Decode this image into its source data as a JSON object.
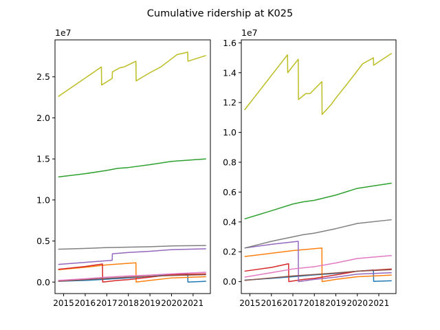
{
  "figure": {
    "title": "Cumulative ridership at K025"
  },
  "chart_data": [
    {
      "type": "line",
      "title": "",
      "xlabel": "",
      "ylabel": "",
      "offset_text": "1e7",
      "xlim": [
        2014.6,
        2021.8
      ],
      "ylim": [
        -1400000,
        29500000
      ],
      "xticks": [
        2015,
        2016,
        2017,
        2018,
        2019,
        2020,
        2021
      ],
      "xtick_labels": [
        "2015",
        "2016",
        "2017",
        "2018",
        "2019",
        "2020",
        "2021"
      ],
      "yticks": [
        0,
        5000000,
        10000000,
        15000000,
        20000000,
        25000000
      ],
      "ytick_labels": [
        "0.0",
        "0.5",
        "1.0",
        "1.5",
        "2.0",
        "2.5"
      ],
      "grid": false,
      "series": [
        {
          "color": "#1f77b4",
          "points": [
            [
              2014.75,
              100000
            ],
            [
              2016,
              200000
            ],
            [
              2017,
              350000
            ],
            [
              2018,
              500000
            ],
            [
              2019,
              700000
            ],
            [
              2020,
              900000
            ],
            [
              2020.75,
              1000000
            ],
            [
              2020.76,
              0
            ],
            [
              2021.6,
              100000
            ]
          ]
        },
        {
          "color": "#ff7f0e",
          "points": [
            [
              2014.75,
              1500000
            ],
            [
              2016,
              1800000
            ],
            [
              2017,
              2100000
            ],
            [
              2018.35,
              2350000
            ],
            [
              2018.36,
              0
            ],
            [
              2019,
              200000
            ],
            [
              2020,
              500000
            ],
            [
              2021.6,
              650000
            ]
          ]
        },
        {
          "color": "#2ca02c",
          "points": [
            [
              2014.75,
              12800000
            ],
            [
              2016,
              13200000
            ],
            [
              2017,
              13600000
            ],
            [
              2017.5,
              13850000
            ],
            [
              2018,
              13950000
            ],
            [
              2019,
              14300000
            ],
            [
              2020,
              14700000
            ],
            [
              2021.6,
              15000000
            ]
          ]
        },
        {
          "color": "#d62728",
          "points": [
            [
              2014.75,
              1550000
            ],
            [
              2016,
              1900000
            ],
            [
              2016.8,
              2200000
            ],
            [
              2016.81,
              0
            ],
            [
              2017.5,
              200000
            ],
            [
              2018,
              300000
            ],
            [
              2019,
              600000
            ],
            [
              2020,
              900000
            ],
            [
              2021.6,
              1000000
            ]
          ]
        },
        {
          "color": "#9467bd",
          "points": [
            [
              2014.75,
              2150000
            ],
            [
              2016,
              2400000
            ],
            [
              2017.25,
              2650000
            ],
            [
              2017.26,
              3450000
            ],
            [
              2018,
              3600000
            ],
            [
              2019,
              3750000
            ],
            [
              2020,
              3950000
            ],
            [
              2021.6,
              4050000
            ]
          ]
        },
        {
          "color": "#8c564b",
          "points": [
            [
              2014.75,
              100000
            ],
            [
              2016,
              300000
            ],
            [
              2017,
              450000
            ],
            [
              2018,
              600000
            ],
            [
              2019,
              700000
            ],
            [
              2020,
              800000
            ],
            [
              2021.6,
              900000
            ]
          ]
        },
        {
          "color": "#e377c2",
          "points": [
            [
              2014.75,
              200000
            ],
            [
              2016,
              400000
            ],
            [
              2017,
              600000
            ],
            [
              2018,
              750000
            ],
            [
              2019,
              850000
            ],
            [
              2020,
              1000000
            ],
            [
              2021.6,
              1200000
            ]
          ]
        },
        {
          "color": "#7f7f7f",
          "points": [
            [
              2014.75,
              4000000
            ],
            [
              2016,
              4100000
            ],
            [
              2017,
              4200000
            ],
            [
              2018,
              4250000
            ],
            [
              2019,
              4300000
            ],
            [
              2020,
              4400000
            ],
            [
              2021.6,
              4450000
            ]
          ]
        },
        {
          "color": "#bcbd22",
          "points": [
            [
              2014.75,
              22600000
            ],
            [
              2016.75,
              26200000
            ],
            [
              2016.76,
              24000000
            ],
            [
              2017.25,
              24800000
            ],
            [
              2017.26,
              25600000
            ],
            [
              2017.6,
              26100000
            ],
            [
              2017.8,
              26200000
            ],
            [
              2018.35,
              26900000
            ],
            [
              2018.36,
              24500000
            ],
            [
              2018.8,
              25200000
            ],
            [
              2019,
              25500000
            ],
            [
              2019.5,
              26200000
            ],
            [
              2020.25,
              27700000
            ],
            [
              2020.75,
              28000000
            ],
            [
              2020.76,
              26900000
            ],
            [
              2021.6,
              27600000
            ]
          ]
        }
      ]
    },
    {
      "type": "line",
      "title": "",
      "xlabel": "",
      "ylabel": "",
      "offset_text": "1e7",
      "xlim": [
        2014.6,
        2021.8
      ],
      "ylim": [
        -800000,
        16200000
      ],
      "xticks": [
        2015,
        2016,
        2017,
        2018,
        2019,
        2020,
        2021
      ],
      "xtick_labels": [
        "2015",
        "2016",
        "2017",
        "2018",
        "2019",
        "2020",
        "2021"
      ],
      "yticks": [
        0,
        2000000,
        4000000,
        6000000,
        8000000,
        10000000,
        12000000,
        14000000,
        16000000
      ],
      "ytick_labels": [
        "0.0",
        "0.2",
        "0.4",
        "0.6",
        "0.8",
        "1.0",
        "1.2",
        "1.4",
        "1.6"
      ],
      "grid": false,
      "series": [
        {
          "color": "#1f77b4",
          "points": [
            [
              2014.75,
              100000
            ],
            [
              2016,
              220000
            ],
            [
              2017,
              330000
            ],
            [
              2018,
              450000
            ],
            [
              2019,
              550000
            ],
            [
              2020,
              700000
            ],
            [
              2020.75,
              780000
            ],
            [
              2020.76,
              20000
            ],
            [
              2021.6,
              60000
            ]
          ]
        },
        {
          "color": "#ff7f0e",
          "points": [
            [
              2014.75,
              1680000
            ],
            [
              2016,
              1900000
            ],
            [
              2017,
              2080000
            ],
            [
              2018.35,
              2250000
            ],
            [
              2018.36,
              0
            ],
            [
              2019,
              150000
            ],
            [
              2020,
              330000
            ],
            [
              2021.6,
              440000
            ]
          ]
        },
        {
          "color": "#2ca02c",
          "points": [
            [
              2014.75,
              4200000
            ],
            [
              2016,
              4750000
            ],
            [
              2017,
              5200000
            ],
            [
              2017.5,
              5350000
            ],
            [
              2018,
              5450000
            ],
            [
              2019,
              5800000
            ],
            [
              2020,
              6250000
            ],
            [
              2021.6,
              6600000
            ]
          ]
        },
        {
          "color": "#d62728",
          "points": [
            [
              2014.75,
              700000
            ],
            [
              2016,
              950000
            ],
            [
              2016.8,
              1200000
            ],
            [
              2016.81,
              0
            ],
            [
              2017.5,
              150000
            ],
            [
              2018,
              220000
            ],
            [
              2019,
              450000
            ],
            [
              2020,
              700000
            ],
            [
              2021.6,
              850000
            ]
          ]
        },
        {
          "color": "#9467bd",
          "points": [
            [
              2014.75,
              2250000
            ],
            [
              2016,
              2500000
            ],
            [
              2017.25,
              2700000
            ],
            [
              2017.26,
              0
            ],
            [
              2018,
              150000
            ],
            [
              2019,
              300000
            ],
            [
              2020,
              500000
            ],
            [
              2021.6,
              600000
            ]
          ]
        },
        {
          "color": "#8c564b",
          "points": [
            [
              2014.75,
              80000
            ],
            [
              2016,
              250000
            ],
            [
              2017,
              380000
            ],
            [
              2018,
              480000
            ],
            [
              2019,
              580000
            ],
            [
              2020,
              700000
            ],
            [
              2021.6,
              800000
            ]
          ]
        },
        {
          "color": "#e377c2",
          "points": [
            [
              2014.75,
              300000
            ],
            [
              2016,
              600000
            ],
            [
              2017,
              850000
            ],
            [
              2018,
              1000000
            ],
            [
              2019,
              1250000
            ],
            [
              2020,
              1550000
            ],
            [
              2021.6,
              1750000
            ]
          ]
        },
        {
          "color": "#7f7f7f",
          "points": [
            [
              2014.75,
              2250000
            ],
            [
              2016,
              2700000
            ],
            [
              2017,
              3000000
            ],
            [
              2017.5,
              3150000
            ],
            [
              2018,
              3250000
            ],
            [
              2019,
              3550000
            ],
            [
              2020,
              3900000
            ],
            [
              2021.6,
              4150000
            ]
          ]
        },
        {
          "color": "#bcbd22",
          "points": [
            [
              2014.75,
              11500000
            ],
            [
              2016.75,
              15200000
            ],
            [
              2016.76,
              14000000
            ],
            [
              2017.25,
              14900000
            ],
            [
              2017.26,
              12200000
            ],
            [
              2017.6,
              12600000
            ],
            [
              2017.8,
              12600000
            ],
            [
              2018.35,
              13400000
            ],
            [
              2018.36,
              11200000
            ],
            [
              2018.8,
              11900000
            ],
            [
              2019,
              12300000
            ],
            [
              2019.5,
              13200000
            ],
            [
              2020.25,
              14600000
            ],
            [
              2020.75,
              15000000
            ],
            [
              2020.76,
              14500000
            ],
            [
              2021.6,
              15300000
            ]
          ]
        }
      ]
    }
  ]
}
